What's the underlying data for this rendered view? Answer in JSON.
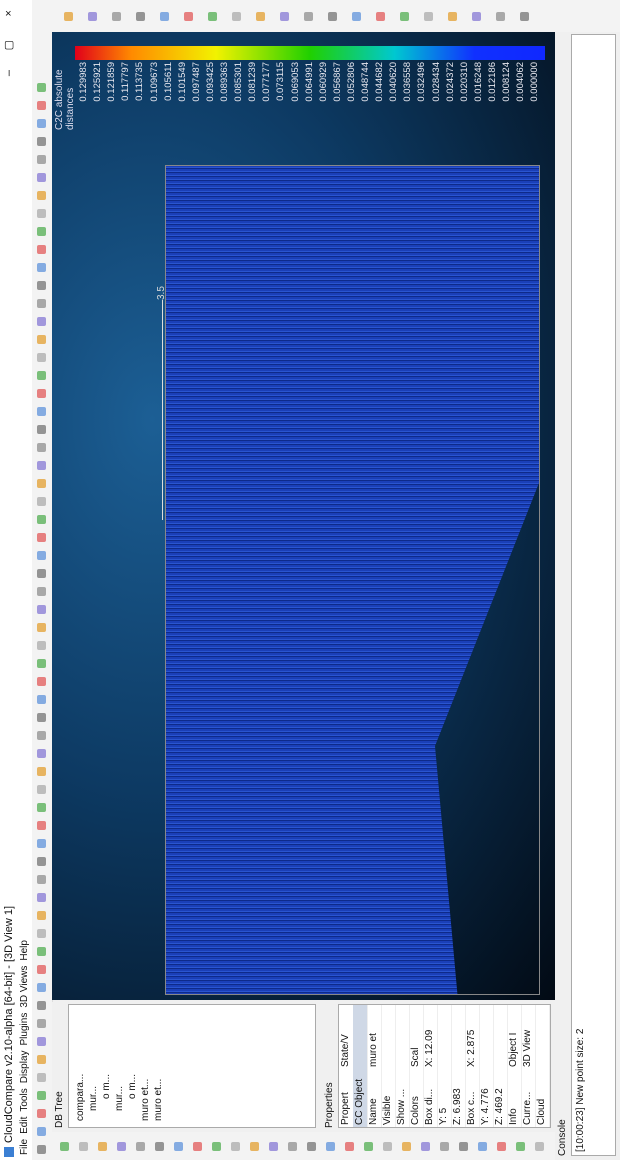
{
  "window": {
    "title": "CloudCompare v2.10-alpha [64-bit] - [3D View 1]"
  },
  "menu": [
    "File",
    "Edit",
    "Tools",
    "Display",
    "Plugins",
    "3D Views",
    "Help"
  ],
  "db_tree": {
    "title": "DB Tree",
    "items": [
      "compara...",
      "mur...",
      "o m...",
      "mur...",
      "o m...",
      "muro et...",
      "muro et..."
    ]
  },
  "properties": {
    "title": "Properties",
    "rows": [
      [
        "Propert",
        "State/V"
      ],
      [
        "CC Object"
      ],
      [
        "Name",
        "muro et"
      ],
      [
        "Visible"
      ],
      [
        "Show ..."
      ],
      [
        "Colors",
        "Scal"
      ],
      [
        "Box di...",
        "X: 12.09"
      ],
      [
        "Y: 5"
      ],
      [
        "Z: 6.983"
      ],
      [
        "Box c...",
        "X: 2.875"
      ],
      [
        "Y: 4.776"
      ],
      [
        "Z: 469.2"
      ],
      [
        "Info",
        "Object I"
      ],
      [
        "Curre...",
        "3D View"
      ],
      [
        "Cloud"
      ]
    ]
  },
  "view": {
    "scale_title": "C2C absolute distances",
    "scale_labels": [
      "0.129983",
      "0.125921",
      "0.121859",
      "0.117797",
      "0.113735",
      "0.109673",
      "0.105611",
      "0.101549",
      "0.097487",
      "0.093425",
      "0.089363",
      "0.085301",
      "0.081239",
      "0.077177",
      "0.073115",
      "0.069053",
      "0.064991",
      "0.060929",
      "0.056867",
      "0.052806",
      "0.048744",
      "0.044682",
      "0.040620",
      "0.036558",
      "0.032496",
      "0.028434",
      "0.024372",
      "0.020310",
      "0.016248",
      "0.012186",
      "0.008124",
      "0.004062",
      "0.000000"
    ],
    "scale_bar_label": "3.5"
  },
  "console": {
    "title": "Console",
    "lines": [
      "[10:00:23] New point size: 2"
    ]
  }
}
